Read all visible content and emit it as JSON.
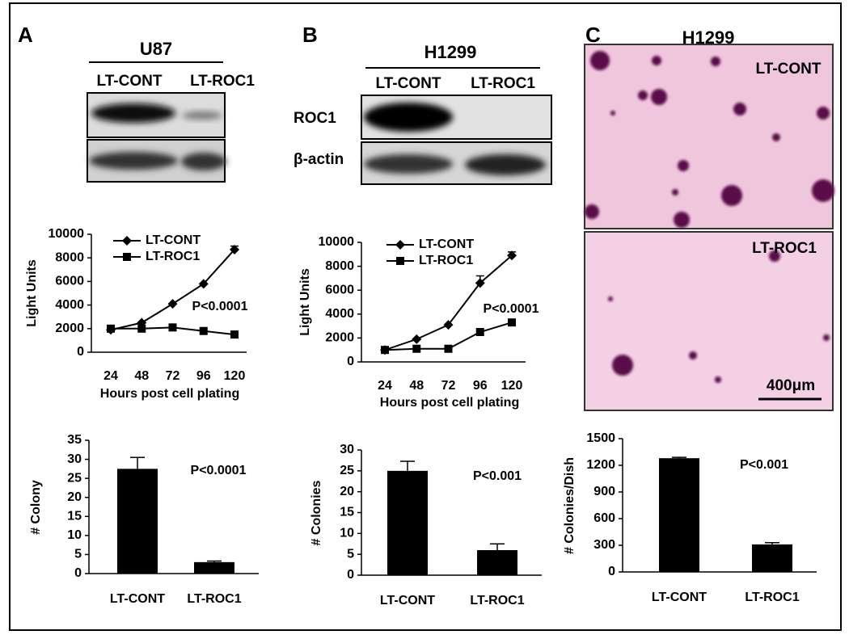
{
  "figure": {
    "panels": [
      "A",
      "B",
      "C"
    ],
    "blot_a": {
      "cell_line": "U87",
      "lanes": [
        "LT-CONT",
        "LT-ROC1"
      ]
    },
    "blot_b": {
      "cell_line": "H1299",
      "lanes": [
        "LT-CONT",
        "LT-ROC1"
      ],
      "rows": [
        "ROC1",
        "β-actin"
      ]
    },
    "micrograph": {
      "title": "H1299",
      "labels": [
        "LT-CONT",
        "LT-ROC1"
      ],
      "scale_bar": "400μm"
    }
  },
  "chart_data": [
    {
      "type": "line",
      "annotation": "P<0.0001",
      "xlabel": "Hours post cell plating",
      "ylabel": "Light Units",
      "categories": [
        "24",
        "48",
        "72",
        "96",
        "120"
      ],
      "series": [
        {
          "name": "LT-CONT",
          "color": "#000000",
          "marker": "diamond",
          "values": [
            1900,
            2500,
            4100,
            5800,
            8700
          ],
          "errors": [
            null,
            null,
            null,
            null,
            300
          ]
        },
        {
          "name": "LT-ROC1",
          "color": "#000000",
          "marker": "square",
          "values": [
            2000,
            2000,
            2100,
            1800,
            1500
          ],
          "errors": [
            null,
            null,
            null,
            null,
            null
          ]
        }
      ],
      "ylim": [
        0,
        10000
      ],
      "yticks": [
        0,
        2000,
        4000,
        6000,
        8000,
        10000
      ]
    },
    {
      "type": "line",
      "annotation": "P<0.0001",
      "xlabel": "Hours post cell plating",
      "ylabel": "Light Units",
      "categories": [
        "24",
        "48",
        "72",
        "96",
        "120"
      ],
      "series": [
        {
          "name": "LT-CONT",
          "color": "#000000",
          "marker": "diamond",
          "values": [
            1000,
            1900,
            3100,
            6600,
            8900
          ],
          "errors": [
            null,
            null,
            null,
            600,
            300
          ]
        },
        {
          "name": "LT-ROC1",
          "color": "#000000",
          "marker": "square",
          "values": [
            1000,
            1100,
            1100,
            2500,
            3300
          ],
          "errors": [
            null,
            null,
            null,
            null,
            null
          ]
        }
      ],
      "ylim": [
        0,
        10000
      ],
      "yticks": [
        0,
        2000,
        4000,
        6000,
        8000,
        10000
      ]
    },
    {
      "type": "bar",
      "annotation": "P<0.0001",
      "ylabel": "# Colony",
      "categories": [
        "LT-CONT",
        "LT-ROC1"
      ],
      "values": [
        27.5,
        3
      ],
      "errors": [
        3,
        0.3
      ],
      "color": "#000000",
      "ylim": [
        0,
        35
      ],
      "yticks": [
        0,
        5,
        10,
        15,
        20,
        25,
        30,
        35
      ]
    },
    {
      "type": "bar",
      "annotation": "P<0.001",
      "ylabel": "# Colonies",
      "categories": [
        "LT-CONT",
        "LT-ROC1"
      ],
      "values": [
        25,
        6
      ],
      "errors": [
        2.3,
        1.5
      ],
      "color": "#000000",
      "ylim": [
        0,
        30
      ],
      "yticks": [
        0,
        5,
        10,
        15,
        20,
        25,
        30
      ]
    },
    {
      "type": "bar",
      "annotation": "P<0.001",
      "ylabel": "# Colonies/Dish",
      "categories": [
        "LT-CONT",
        "LT-ROC1"
      ],
      "values": [
        1280,
        310
      ],
      "errors": [
        10,
        20
      ],
      "color": "#000000",
      "ylim": [
        0,
        1500
      ],
      "yticks": [
        0,
        300,
        600,
        900,
        1200,
        1500
      ]
    }
  ]
}
